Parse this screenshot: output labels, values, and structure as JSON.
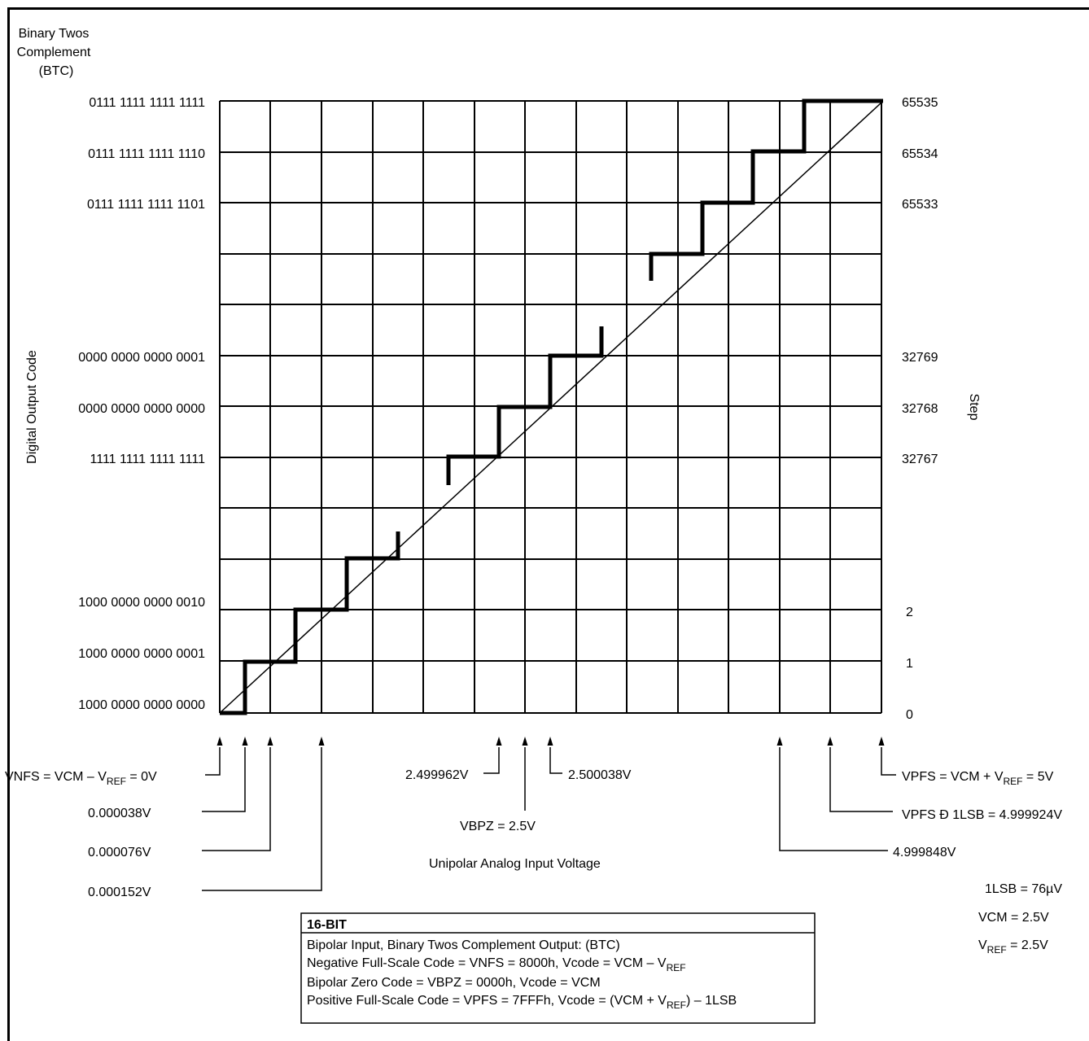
{
  "header": {
    "title_lines": [
      "Binary Twos",
      "Complement",
      "(BTC)"
    ]
  },
  "y_axis_label": "Digital Output Code",
  "right_axis_label": "Step",
  "x_axis_label": "Unipolar Analog Input Voltage",
  "code_labels": [
    "0111 1111 1111 1111",
    "0111 1111 1111 1110",
    "0111 1111 1111 1101",
    "0000 0000 0000 0001",
    "0000 0000 0000 0000",
    "1111 1111 1111 1111",
    "1000 0000 0000 0010",
    "1000 0000 0000 0001",
    "1000 0000 0000 0000"
  ],
  "step_labels": [
    "65535",
    "65534",
    "65533",
    "32769",
    "32768",
    "32767",
    "2",
    "1",
    "0"
  ],
  "voltage_labels": {
    "vnfs": "VNFS = VCM – V",
    "vnfs_sub": "REF",
    "vnfs_tail": " = 0V",
    "v1": "0.000038V",
    "v2": "0.000076V",
    "v3": "0.000152V",
    "mid_low": "2.499962V",
    "mid_high": "2.500038V",
    "vbpz": "VBPZ = 2.5V",
    "vpfs": "VPFS = VCM + V",
    "vpfs_sub": "REF",
    "vpfs_tail": " = 5V",
    "vpfs_1lsb": "VPFS Ð 1LSB = 4.999924V",
    "v_high2": "4.999848V"
  },
  "params": {
    "lsb": "1LSB = 76µV",
    "vcm": "VCM = 2.5V",
    "vref_main": "V",
    "vref_sub": "REF",
    "vref_tail": " = 2.5V"
  },
  "info_box": {
    "title": "16-BIT",
    "line1": "Bipolar Input, Binary Twos Complement Output: (BTC)",
    "line2": "Negative Full-Scale Code = VNFS = 8000h, Vcode = VCM – V",
    "line2_sub": "REF",
    "line3": "Bipolar Zero Code = VBPZ = 0000h, Vcode = VCM",
    "line4a": "Positive Full-Scale Code = VPFS = 7FFFh, Vcode = (VCM + V",
    "line4_sub": "REF",
    "line4b": ") – 1LSB"
  },
  "colors": {
    "line": "#000000",
    "background": "#ffffff"
  }
}
